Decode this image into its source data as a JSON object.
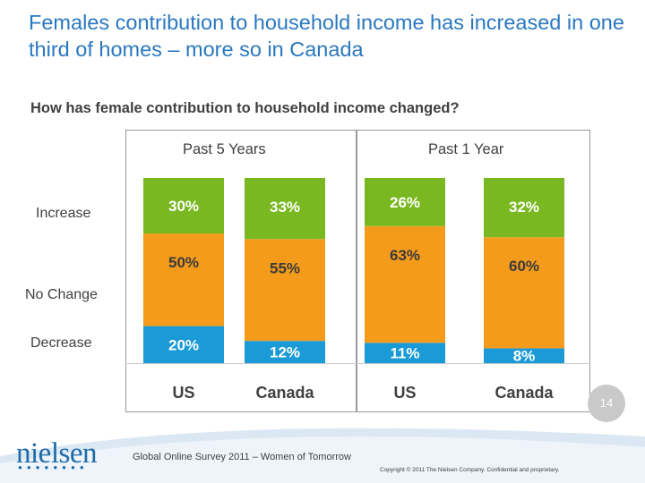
{
  "title": "Females contribution to household income has increased in one third of homes – more so in Canada",
  "question": "How has female contribution to household income changed?",
  "periods": [
    "Past 5 Years",
    "Past 1 Year"
  ],
  "row_labels": [
    "Increase",
    "No Change",
    "Decrease"
  ],
  "chart_data": {
    "type": "bar",
    "stacked": true,
    "title": "How has female contribution to household income changed?",
    "groups": [
      "Past 5 Years",
      "Past 5 Years",
      "Past 1 Year",
      "Past 1 Year"
    ],
    "categories": [
      "US",
      "Canada",
      "US",
      "Canada"
    ],
    "series": [
      {
        "name": "Decrease",
        "color": "#1a9ad6",
        "values": [
          20,
          12,
          11,
          8
        ]
      },
      {
        "name": "No Change",
        "color": "#f59b1c",
        "values": [
          50,
          55,
          63,
          60
        ]
      },
      {
        "name": "Increase",
        "color": "#79b821",
        "values": [
          30,
          33,
          26,
          32
        ]
      }
    ],
    "value_labels": [
      [
        "20%",
        "12%",
        "11%",
        "8%"
      ],
      [
        "50%",
        "55%",
        "63%",
        "60%"
      ],
      [
        "30%",
        "33%",
        "26%",
        "32%"
      ]
    ],
    "ylim": [
      0,
      100
    ],
    "xlabel": "",
    "ylabel": ""
  },
  "page_number": "14",
  "logo_text": "nielsen",
  "source": "Global Online Survey 2011 – Women of Tomorrow",
  "copyright": "Copyright © 2011 The Nielsen Company. Confidential and proprietary."
}
